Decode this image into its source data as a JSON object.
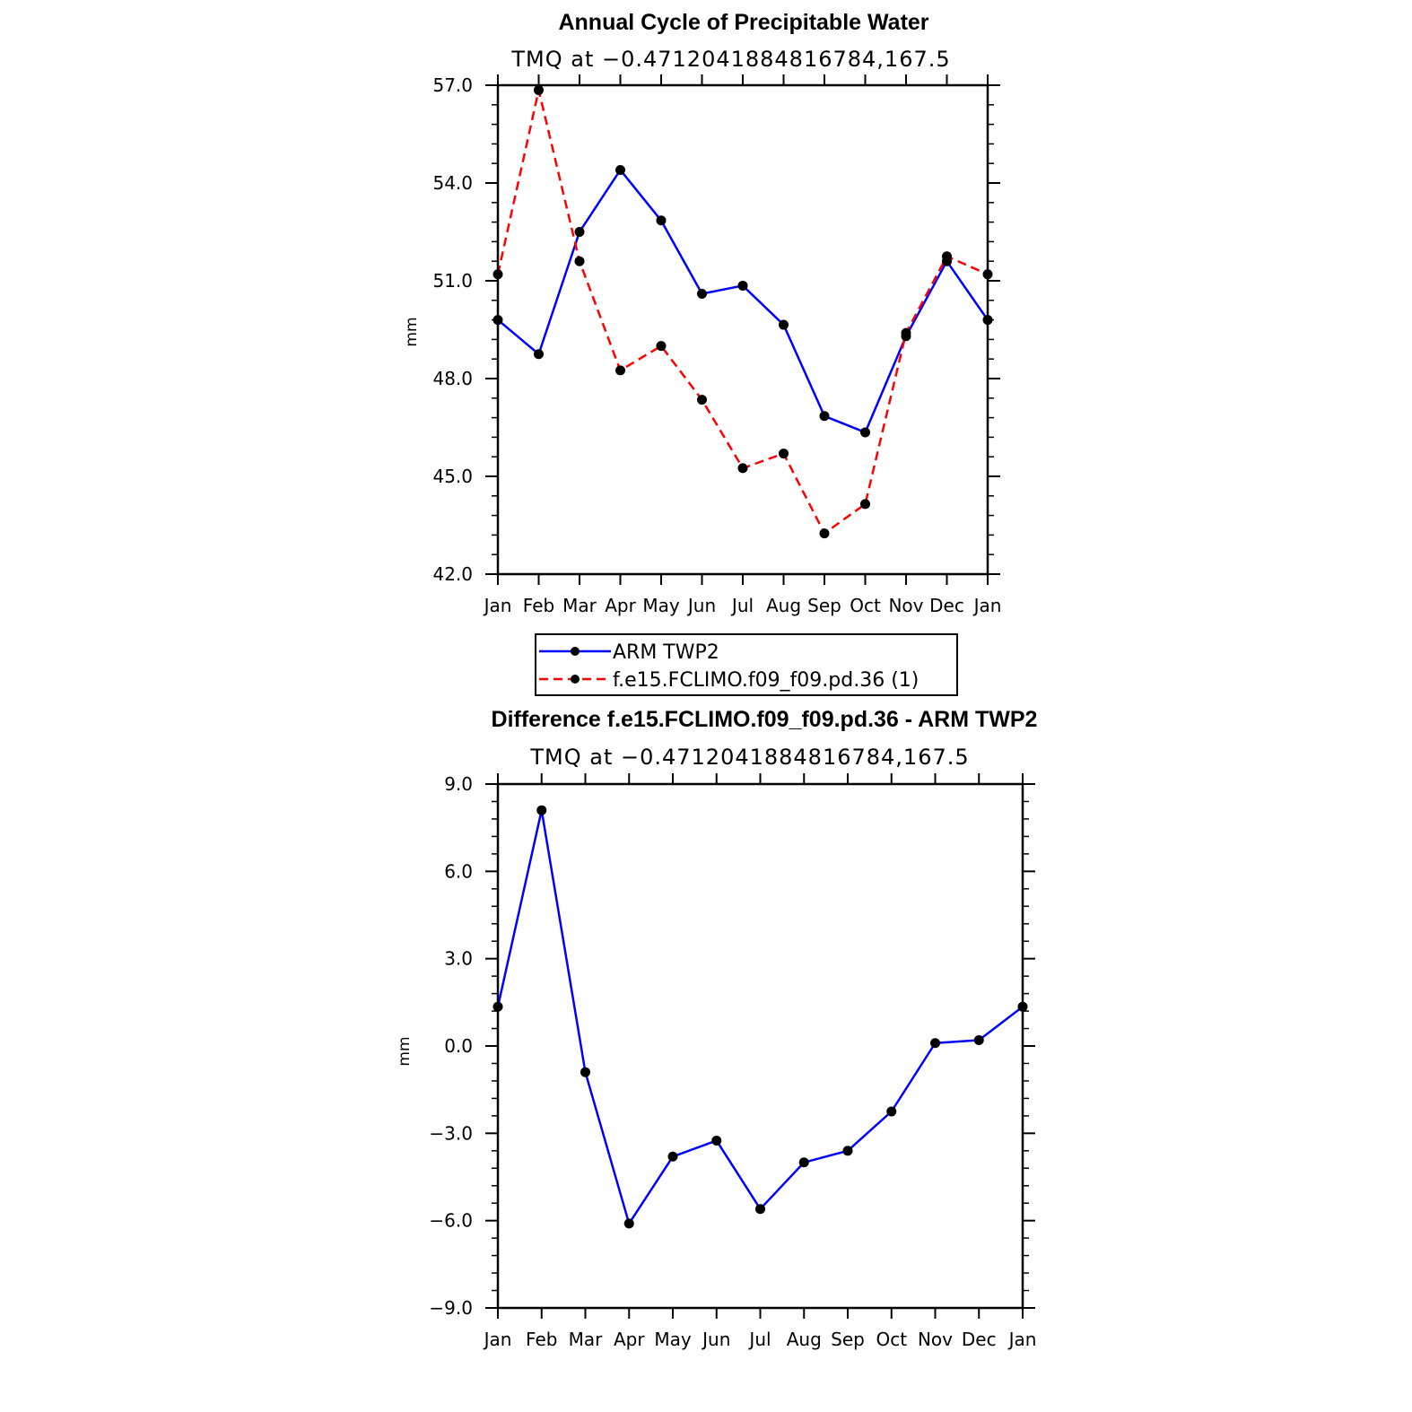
{
  "chart_data": [
    {
      "type": "line",
      "title": "Annual Cycle of Precipitable Water",
      "subtitle": "TMQ at −0.4712041884816784,167.5",
      "xlabel": "",
      "ylabel": "mm",
      "categories": [
        "Jan",
        "Feb",
        "Mar",
        "Apr",
        "May",
        "Jun",
        "Jul",
        "Aug",
        "Sep",
        "Oct",
        "Nov",
        "Dec",
        "Jan"
      ],
      "ylim": [
        42.0,
        57.0
      ],
      "ytick_labels": [
        "42.0",
        "45.0",
        "48.0",
        "51.0",
        "54.0",
        "57.0"
      ],
      "series": [
        {
          "name": "ARM  TWP2",
          "color": "#0000ff",
          "dash": "solid",
          "values": [
            49.8,
            48.75,
            52.5,
            54.4,
            52.85,
            50.6,
            50.85,
            49.65,
            46.85,
            46.35,
            49.3,
            51.6,
            49.8
          ]
        },
        {
          "name": "f.e15.FCLIMO.f09_f09.pd.36  (1)",
          "color": "#ff0000",
          "dash": "dashed",
          "values": [
            51.2,
            56.85,
            51.6,
            48.25,
            49.0,
            47.35,
            45.25,
            45.7,
            43.25,
            44.15,
            49.4,
            51.75,
            51.2
          ]
        }
      ],
      "legend_position": "bottom"
    },
    {
      "type": "line",
      "title": "Difference f.e15.FCLIMO.f09_f09.pd.36 - ARM TWP2",
      "subtitle": "TMQ at −0.4712041884816784,167.5",
      "xlabel": "",
      "ylabel": "mm",
      "categories": [
        "Jan",
        "Feb",
        "Mar",
        "Apr",
        "May",
        "Jun",
        "Jul",
        "Aug",
        "Sep",
        "Oct",
        "Nov",
        "Dec",
        "Jan"
      ],
      "ylim": [
        -9.0,
        9.0
      ],
      "ytick_labels": [
        "−9.0",
        "−6.0",
        "−3.0",
        "0.0",
        "3.0",
        "6.0",
        "9.0"
      ],
      "series": [
        {
          "name": "Difference",
          "color": "#0000ff",
          "dash": "solid",
          "values": [
            1.35,
            8.1,
            -0.9,
            -6.1,
            -3.8,
            -3.25,
            -5.6,
            -4.0,
            -3.6,
            -2.25,
            0.1,
            0.2,
            1.35
          ]
        }
      ]
    }
  ]
}
